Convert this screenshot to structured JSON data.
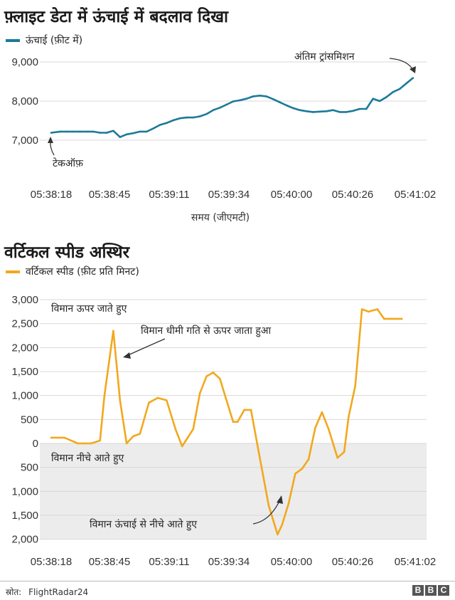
{
  "chart_data": [
    {
      "type": "line",
      "title": "फ़्लाइट डेटा में ऊंचाई में बदलाव दिखा",
      "legend": "ऊंचाई (फ़ीट में)",
      "xlabel": "समय (जीएमटी)",
      "ylabel": "",
      "ylim": [
        6000,
        9200
      ],
      "yticks": [
        7000,
        8000,
        9000
      ],
      "ytick_labels": [
        "7,000",
        "8,000",
        "9,000"
      ],
      "xticks": [
        "05:38:18",
        "05:38:45",
        "05:39:11",
        "05:39:34",
        "05:40:00",
        "05:40:26",
        "05:41:02"
      ],
      "grid": true,
      "series_color": "#1b7a99",
      "annotations": [
        "अंतिम ट्रांसमिशन",
        "टेकऑफ़"
      ],
      "x": [
        "05:38:18",
        "05:38:22",
        "05:38:25",
        "05:38:28",
        "05:38:31",
        "05:38:34",
        "05:38:37",
        "05:38:40",
        "05:38:43",
        "05:38:46",
        "05:38:49",
        "05:38:52",
        "05:38:55",
        "05:38:58",
        "05:39:01",
        "05:39:04",
        "05:39:07",
        "05:39:10",
        "05:39:13",
        "05:39:16",
        "05:39:19",
        "05:39:22",
        "05:39:25",
        "05:39:28",
        "05:39:31",
        "05:39:34",
        "05:39:37",
        "05:39:40",
        "05:39:43",
        "05:39:46",
        "05:39:49",
        "05:39:52",
        "05:39:55",
        "05:39:58",
        "05:40:01",
        "05:40:04",
        "05:40:07",
        "05:40:10",
        "05:40:13",
        "05:40:16",
        "05:40:19",
        "05:40:22",
        "05:40:25",
        "05:40:28",
        "05:40:31",
        "05:40:34",
        "05:40:37",
        "05:40:40",
        "05:40:43",
        "05:40:46",
        "05:40:49",
        "05:40:52",
        "05:40:55",
        "05:40:58",
        "05:41:01"
      ],
      "values": [
        7190,
        7220,
        7220,
        7220,
        7220,
        7220,
        7220,
        7190,
        7190,
        7240,
        7080,
        7150,
        7180,
        7220,
        7220,
        7300,
        7390,
        7440,
        7510,
        7560,
        7580,
        7580,
        7610,
        7670,
        7770,
        7830,
        7910,
        7990,
        8020,
        8060,
        8120,
        8140,
        8120,
        8050,
        7970,
        7890,
        7820,
        7770,
        7740,
        7720,
        7730,
        7740,
        7770,
        7720,
        7720,
        7750,
        7800,
        7800,
        8060,
        8000,
        8100,
        8230,
        8310,
        8450,
        8590
      ]
    },
    {
      "type": "line",
      "title": "वर्टिकल स्पीड अस्थिर",
      "legend": "वर्टिकल स्पीड (फ़ीट प्रति मिनट)",
      "xlabel": "",
      "ylabel": "",
      "ylim": [
        -2000,
        3000
      ],
      "yticks": [
        3000,
        2500,
        2000,
        1500,
        1000,
        500,
        0,
        -500,
        -1000,
        -1500,
        -2000
      ],
      "ytick_labels": [
        "3,000",
        "2,500",
        "2,000",
        "1,500",
        "1,000",
        "500",
        "0",
        "500",
        "1,000",
        "1,500",
        "2,000"
      ],
      "xticks": [
        "05:38:18",
        "05:38:45",
        "05:39:11",
        "05:39:34",
        "05:40:00",
        "05:40:26",
        "05:41:02"
      ],
      "grid": true,
      "series_color": "#f2a81d",
      "shaded_region": "below-zero",
      "annotations": [
        "विमान ऊपर जाते हुए",
        "विमान धीमी गति से ऊपर जाता हुआ",
        "विमान नीचे आते हुए",
        "विमान ऊंचाई से नीचे आते हुए"
      ],
      "x": [
        "05:38:18",
        "05:38:24",
        "05:38:30",
        "05:38:33",
        "05:38:36",
        "05:38:40",
        "05:38:42",
        "05:38:46",
        "05:38:49",
        "05:38:52",
        "05:38:55",
        "05:38:58",
        "05:39:02",
        "05:39:06",
        "05:39:10",
        "05:39:14",
        "05:39:17",
        "05:39:22",
        "05:39:25",
        "05:39:28",
        "05:39:31",
        "05:39:34",
        "05:39:37",
        "05:39:40",
        "05:39:42",
        "05:39:45",
        "05:39:48",
        "05:39:51",
        "05:39:56",
        "05:40:00",
        "05:40:02",
        "05:40:05",
        "05:40:08",
        "05:40:11",
        "05:40:14",
        "05:40:17",
        "05:40:20",
        "05:40:23",
        "05:40:27",
        "05:40:30",
        "05:40:32",
        "05:40:35",
        "05:40:38",
        "05:40:41",
        "05:40:45",
        "05:40:48",
        "05:40:52",
        "05:40:56"
      ],
      "values": [
        120,
        120,
        0,
        0,
        0,
        60,
        1000,
        2350,
        900,
        0,
        150,
        200,
        850,
        950,
        900,
        300,
        -60,
        300,
        1050,
        1400,
        1480,
        1350,
        900,
        450,
        450,
        700,
        700,
        -50,
        -1300,
        -1900,
        -1700,
        -1250,
        -630,
        -530,
        -330,
        330,
        650,
        300,
        -300,
        -180,
        550,
        1200,
        2800,
        2750,
        2800,
        2600,
        2600,
        2600
      ]
    }
  ],
  "footer": {
    "source_label": "स्रोत:",
    "source_name": "FlightRadar24",
    "logo": [
      "B",
      "B",
      "C"
    ]
  }
}
